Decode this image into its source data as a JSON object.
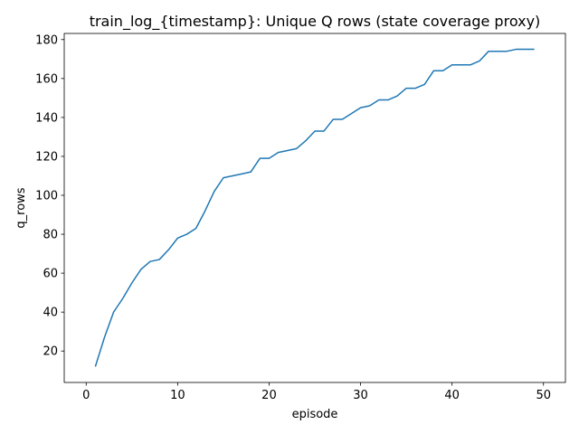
{
  "chart_data": {
    "type": "line",
    "title": "train_log_{timestamp}: Unique Q rows (state coverage proxy)",
    "xlabel": "episode",
    "ylabel": "q_rows",
    "xlim": [
      -2.4,
      52.4
    ],
    "ylim": [
      3.85,
      183.15
    ],
    "xticks": [
      0,
      10,
      20,
      30,
      40,
      50
    ],
    "yticks": [
      20,
      40,
      60,
      80,
      100,
      120,
      140,
      160,
      180
    ],
    "grid": false,
    "legend": "none",
    "series": [
      {
        "color": "#1f77b4",
        "x": [
          1,
          2,
          3,
          4,
          5,
          6,
          7,
          8,
          9,
          10,
          11,
          12,
          13,
          14,
          15,
          16,
          17,
          18,
          19,
          20,
          21,
          22,
          23,
          24,
          25,
          26,
          27,
          28,
          29,
          30,
          31,
          32,
          33,
          34,
          35,
          36,
          37,
          38,
          39,
          40,
          41,
          42,
          43,
          44,
          45,
          46,
          47,
          48,
          49
        ],
        "values": [
          12,
          27,
          40,
          47,
          55,
          62,
          66,
          67,
          72,
          78,
          80,
          83,
          92,
          102,
          109,
          110,
          111,
          112,
          119,
          119,
          122,
          123,
          124,
          128,
          133,
          133,
          139,
          139,
          142,
          145,
          146,
          149,
          149,
          151,
          155,
          155,
          157,
          164,
          164,
          167,
          167,
          167,
          169,
          174,
          174,
          174,
          175,
          175,
          175
        ]
      }
    ]
  }
}
